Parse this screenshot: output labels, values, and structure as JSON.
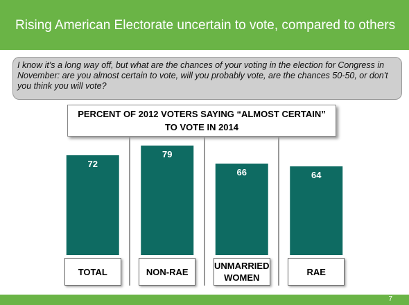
{
  "header": {
    "title": "Rising American Electorate uncertain to vote, compared to others"
  },
  "question": "I know it's a long way off, but what are the chances of your voting in the election for Congress in November: are you almost certain to vote, will you probably vote, are the chances 50-50, or don't you think you will vote?",
  "page_number": "7",
  "chart_data": {
    "type": "bar",
    "title": "PERCENT OF 2012 VOTERS SAYING “ALMOST CERTAIN” TO VOTE IN 2014",
    "categories": [
      "TOTAL",
      "NON-RAE",
      "UNMARRIED WOMEN",
      "RAE"
    ],
    "values": [
      72,
      79,
      66,
      64
    ],
    "color": "#0e6b62"
  }
}
